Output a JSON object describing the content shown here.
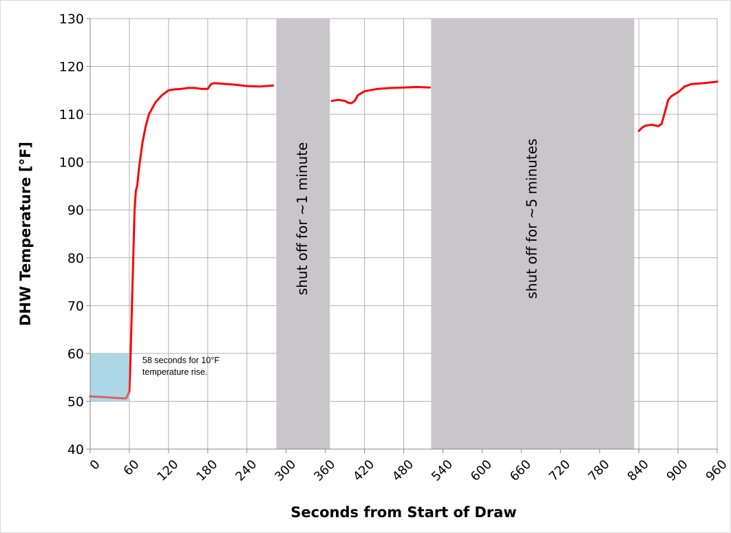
{
  "chart_data": {
    "type": "line",
    "title": "",
    "xlabel": "Seconds from Start of Draw",
    "ylabel": "DHW Temperature [°F]",
    "xlim": [
      0,
      960
    ],
    "ylim": [
      40,
      130
    ],
    "grid": true,
    "legend": "none",
    "x_ticks": [
      0,
      60,
      120,
      180,
      240,
      300,
      360,
      420,
      480,
      540,
      600,
      660,
      720,
      780,
      840,
      900,
      960
    ],
    "y_ticks": [
      40,
      50,
      60,
      70,
      80,
      90,
      100,
      110,
      120,
      130
    ],
    "line_color": "#ff0000",
    "series": [
      {
        "segments": [
          [
            [
              0,
              51
            ],
            [
              20,
              50.9
            ],
            [
              40,
              50.7
            ],
            [
              55,
              50.6
            ],
            [
              60,
              52
            ],
            [
              62,
              60
            ],
            [
              64,
              70
            ],
            [
              66,
              80
            ],
            [
              68,
              90
            ],
            [
              70,
              94
            ],
            [
              72,
              95
            ],
            [
              75,
              99
            ],
            [
              80,
              104
            ],
            [
              85,
              107.5
            ],
            [
              90,
              110
            ],
            [
              100,
              112.5
            ],
            [
              110,
              114
            ],
            [
              120,
              115
            ],
            [
              130,
              115.2
            ],
            [
              140,
              115.3
            ],
            [
              150,
              115.5
            ],
            [
              160,
              115.5
            ],
            [
              170,
              115.3
            ],
            [
              180,
              115.3
            ],
            [
              185,
              116.3
            ],
            [
              190,
              116.5
            ],
            [
              200,
              116.4
            ],
            [
              220,
              116.2
            ],
            [
              240,
              115.9
            ],
            [
              260,
              115.8
            ],
            [
              280,
              116
            ]
          ],
          [
            [
              370,
              112.8
            ],
            [
              380,
              113
            ],
            [
              390,
              112.8
            ],
            [
              395,
              112.4
            ],
            [
              400,
              112.3
            ],
            [
              405,
              112.8
            ],
            [
              410,
              114
            ],
            [
              420,
              114.8
            ],
            [
              440,
              115.3
            ],
            [
              460,
              115.5
            ],
            [
              480,
              115.6
            ],
            [
              500,
              115.7
            ],
            [
              520,
              115.6
            ]
          ],
          [
            [
              840,
              106.5
            ],
            [
              845,
              107.2
            ],
            [
              850,
              107.6
            ],
            [
              860,
              107.8
            ],
            [
              870,
              107.5
            ],
            [
              875,
              108
            ],
            [
              880,
              110.5
            ],
            [
              885,
              113
            ],
            [
              890,
              113.8
            ],
            [
              900,
              114.6
            ],
            [
              910,
              115.8
            ],
            [
              920,
              116.3
            ],
            [
              940,
              116.5
            ],
            [
              960,
              116.8
            ]
          ]
        ]
      }
    ],
    "shaded_regions": [
      {
        "x_start": 0,
        "x_end": 60,
        "y_start": 50,
        "y_end": 60,
        "color": "#add8e6",
        "label": ""
      },
      {
        "x_start": 285,
        "x_end": 367,
        "color": "#c9c6ca",
        "label": "shut off for ~1 minute"
      },
      {
        "x_start": 522,
        "x_end": 833,
        "color": "#c9c6ca",
        "label": "shut off for ~5 minutes"
      }
    ],
    "annotation": {
      "lines": [
        "58 seconds for 10°F",
        "temperature rise."
      ],
      "x": 80,
      "y": 58
    }
  }
}
